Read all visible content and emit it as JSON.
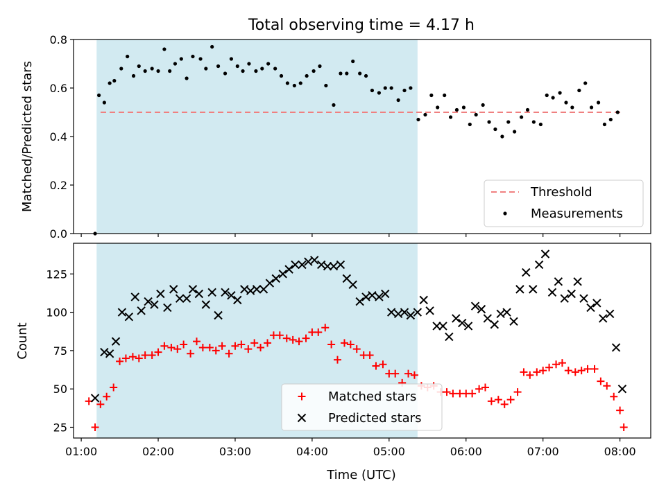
{
  "title": "Total observing time = 4.17 h",
  "xlabel": "Time (UTC)",
  "x_tick_labels": [
    "01:00",
    "02:00",
    "03:00",
    "04:00",
    "05:00",
    "06:00",
    "07:00",
    "08:00"
  ],
  "observing_window": {
    "start_h": 1.2,
    "end_h": 5.37,
    "color": "#add8e6"
  },
  "chart_data": [
    {
      "type": "scatter",
      "ylabel": "Matched/Predicted stars",
      "xlim": [
        0.9,
        8.4
      ],
      "ylim": [
        0,
        0.8
      ],
      "y_ticks": [
        "0.0",
        "0.2",
        "0.4",
        "0.6",
        "0.8"
      ],
      "threshold": {
        "name": "Threshold",
        "value": 0.5,
        "color": "#f08080"
      },
      "series": [
        {
          "name": "Measurements",
          "color": "#000000",
          "marker": "dot",
          "points": [
            [
              1.18,
              0.0
            ],
            [
              1.23,
              0.57
            ],
            [
              1.3,
              0.54
            ],
            [
              1.37,
              0.62
            ],
            [
              1.43,
              0.63
            ],
            [
              1.52,
              0.68
            ],
            [
              1.6,
              0.73
            ],
            [
              1.68,
              0.65
            ],
            [
              1.75,
              0.69
            ],
            [
              1.83,
              0.67
            ],
            [
              1.92,
              0.68
            ],
            [
              2.0,
              0.67
            ],
            [
              2.08,
              0.76
            ],
            [
              2.15,
              0.67
            ],
            [
              2.22,
              0.7
            ],
            [
              2.3,
              0.72
            ],
            [
              2.37,
              0.64
            ],
            [
              2.45,
              0.73
            ],
            [
              2.55,
              0.72
            ],
            [
              2.62,
              0.68
            ],
            [
              2.7,
              0.77
            ],
            [
              2.78,
              0.69
            ],
            [
              2.87,
              0.66
            ],
            [
              2.95,
              0.72
            ],
            [
              3.03,
              0.69
            ],
            [
              3.1,
              0.67
            ],
            [
              3.18,
              0.7
            ],
            [
              3.27,
              0.67
            ],
            [
              3.35,
              0.68
            ],
            [
              3.43,
              0.7
            ],
            [
              3.52,
              0.68
            ],
            [
              3.6,
              0.65
            ],
            [
              3.68,
              0.62
            ],
            [
              3.77,
              0.61
            ],
            [
              3.85,
              0.62
            ],
            [
              3.93,
              0.65
            ],
            [
              4.02,
              0.67
            ],
            [
              4.1,
              0.69
            ],
            [
              4.18,
              0.61
            ],
            [
              4.28,
              0.53
            ],
            [
              4.37,
              0.66
            ],
            [
              4.45,
              0.66
            ],
            [
              4.53,
              0.71
            ],
            [
              4.62,
              0.66
            ],
            [
              4.7,
              0.65
            ],
            [
              4.78,
              0.59
            ],
            [
              4.87,
              0.58
            ],
            [
              4.95,
              0.6
            ],
            [
              5.03,
              0.6
            ],
            [
              5.12,
              0.55
            ],
            [
              5.2,
              0.59
            ],
            [
              5.28,
              0.6
            ],
            [
              5.38,
              0.47
            ],
            [
              5.47,
              0.49
            ],
            [
              5.55,
              0.57
            ],
            [
              5.63,
              0.52
            ],
            [
              5.72,
              0.57
            ],
            [
              5.8,
              0.48
            ],
            [
              5.88,
              0.51
            ],
            [
              5.97,
              0.52
            ],
            [
              6.05,
              0.45
            ],
            [
              6.13,
              0.49
            ],
            [
              6.22,
              0.53
            ],
            [
              6.3,
              0.46
            ],
            [
              6.38,
              0.43
            ],
            [
              6.47,
              0.4
            ],
            [
              6.55,
              0.46
            ],
            [
              6.63,
              0.42
            ],
            [
              6.72,
              0.48
            ],
            [
              6.8,
              0.51
            ],
            [
              6.88,
              0.46
            ],
            [
              6.97,
              0.45
            ],
            [
              7.05,
              0.57
            ],
            [
              7.13,
              0.56
            ],
            [
              7.22,
              0.58
            ],
            [
              7.3,
              0.54
            ],
            [
              7.38,
              0.52
            ],
            [
              7.47,
              0.59
            ],
            [
              7.55,
              0.62
            ],
            [
              7.63,
              0.52
            ],
            [
              7.72,
              0.54
            ],
            [
              7.8,
              0.45
            ],
            [
              7.88,
              0.47
            ],
            [
              7.97,
              0.5
            ]
          ]
        }
      ],
      "legend": {
        "position": "lower right",
        "entries": [
          "Threshold",
          "Measurements"
        ]
      }
    },
    {
      "type": "scatter",
      "ylabel": "Count",
      "xlim": [
        0.9,
        8.4
      ],
      "ylim": [
        18,
        145
      ],
      "y_ticks": [
        "25",
        "50",
        "75",
        "100",
        "125"
      ],
      "series": [
        {
          "name": "Matched stars",
          "color": "#ff0000",
          "marker": "plus",
          "points": [
            [
              1.1,
              42
            ],
            [
              1.18,
              25
            ],
            [
              1.25,
              40
            ],
            [
              1.33,
              45
            ],
            [
              1.42,
              51
            ],
            [
              1.5,
              68
            ],
            [
              1.58,
              70
            ],
            [
              1.67,
              71
            ],
            [
              1.75,
              70
            ],
            [
              1.83,
              72
            ],
            [
              1.92,
              72
            ],
            [
              2.0,
              74
            ],
            [
              2.08,
              78
            ],
            [
              2.17,
              77
            ],
            [
              2.25,
              76
            ],
            [
              2.33,
              79
            ],
            [
              2.42,
              73
            ],
            [
              2.5,
              81
            ],
            [
              2.58,
              77
            ],
            [
              2.67,
              77
            ],
            [
              2.75,
              75
            ],
            [
              2.83,
              78
            ],
            [
              2.92,
              73
            ],
            [
              3.0,
              78
            ],
            [
              3.08,
              79
            ],
            [
              3.17,
              76
            ],
            [
              3.25,
              80
            ],
            [
              3.33,
              77
            ],
            [
              3.42,
              80
            ],
            [
              3.5,
              85
            ],
            [
              3.58,
              85
            ],
            [
              3.67,
              83
            ],
            [
              3.75,
              82
            ],
            [
              3.83,
              81
            ],
            [
              3.92,
              83
            ],
            [
              4.0,
              87
            ],
            [
              4.08,
              87
            ],
            [
              4.17,
              90
            ],
            [
              4.25,
              79
            ],
            [
              4.33,
              69
            ],
            [
              4.42,
              80
            ],
            [
              4.5,
              79
            ],
            [
              4.58,
              76
            ],
            [
              4.67,
              72
            ],
            [
              4.75,
              72
            ],
            [
              4.83,
              65
            ],
            [
              4.92,
              66
            ],
            [
              5.0,
              60
            ],
            [
              5.08,
              60
            ],
            [
              5.17,
              54
            ],
            [
              5.25,
              60
            ],
            [
              5.33,
              59
            ],
            [
              5.42,
              52
            ],
            [
              5.5,
              51
            ],
            [
              5.58,
              52
            ],
            [
              5.67,
              48
            ],
            [
              5.75,
              48
            ],
            [
              5.83,
              47
            ],
            [
              5.92,
              47
            ],
            [
              6.0,
              47
            ],
            [
              6.08,
              47
            ],
            [
              6.17,
              50
            ],
            [
              6.25,
              51
            ],
            [
              6.33,
              42
            ],
            [
              6.42,
              43
            ],
            [
              6.5,
              40
            ],
            [
              6.58,
              43
            ],
            [
              6.67,
              48
            ],
            [
              6.75,
              61
            ],
            [
              6.83,
              59
            ],
            [
              6.92,
              61
            ],
            [
              7.0,
              62
            ],
            [
              7.08,
              64
            ],
            [
              7.17,
              66
            ],
            [
              7.25,
              67
            ],
            [
              7.33,
              62
            ],
            [
              7.42,
              61
            ],
            [
              7.5,
              62
            ],
            [
              7.58,
              63
            ],
            [
              7.67,
              63
            ],
            [
              7.75,
              55
            ],
            [
              7.83,
              52
            ],
            [
              7.92,
              45
            ],
            [
              8.0,
              36
            ],
            [
              8.05,
              25
            ]
          ]
        },
        {
          "name": "Predicted stars",
          "color": "#000000",
          "marker": "cross",
          "points": [
            [
              1.18,
              44
            ],
            [
              1.3,
              74
            ],
            [
              1.37,
              73
            ],
            [
              1.45,
              81
            ],
            [
              1.53,
              100
            ],
            [
              1.62,
              97
            ],
            [
              1.7,
              110
            ],
            [
              1.78,
              101
            ],
            [
              1.87,
              107
            ],
            [
              1.95,
              105
            ],
            [
              2.03,
              112
            ],
            [
              2.12,
              103
            ],
            [
              2.2,
              115
            ],
            [
              2.28,
              109
            ],
            [
              2.37,
              109
            ],
            [
              2.45,
              115
            ],
            [
              2.53,
              112
            ],
            [
              2.62,
              105
            ],
            [
              2.7,
              113
            ],
            [
              2.78,
              98
            ],
            [
              2.87,
              113
            ],
            [
              2.95,
              111
            ],
            [
              3.03,
              108
            ],
            [
              3.12,
              115
            ],
            [
              3.2,
              114
            ],
            [
              3.28,
              115
            ],
            [
              3.37,
              115
            ],
            [
              3.45,
              119
            ],
            [
              3.53,
              122
            ],
            [
              3.62,
              125
            ],
            [
              3.7,
              128
            ],
            [
              3.78,
              131
            ],
            [
              3.87,
              131
            ],
            [
              3.95,
              133
            ],
            [
              4.03,
              134
            ],
            [
              4.12,
              131
            ],
            [
              4.2,
              130
            ],
            [
              4.28,
              130
            ],
            [
              4.37,
              131
            ],
            [
              4.45,
              122
            ],
            [
              4.53,
              118
            ],
            [
              4.62,
              107
            ],
            [
              4.7,
              110
            ],
            [
              4.78,
              111
            ],
            [
              4.87,
              110
            ],
            [
              4.95,
              112
            ],
            [
              5.03,
              100
            ],
            [
              5.12,
              99
            ],
            [
              5.2,
              100
            ],
            [
              5.28,
              98
            ],
            [
              5.37,
              100
            ],
            [
              5.45,
              108
            ],
            [
              5.53,
              101
            ],
            [
              5.62,
              91
            ],
            [
              5.7,
              91
            ],
            [
              5.78,
              84
            ],
            [
              5.87,
              96
            ],
            [
              5.95,
              93
            ],
            [
              6.03,
              91
            ],
            [
              6.12,
              104
            ],
            [
              6.2,
              102
            ],
            [
              6.28,
              96
            ],
            [
              6.37,
              92
            ],
            [
              6.45,
              99
            ],
            [
              6.53,
              100
            ],
            [
              6.62,
              94
            ],
            [
              6.7,
              115
            ],
            [
              6.78,
              126
            ],
            [
              6.87,
              115
            ],
            [
              6.95,
              131
            ],
            [
              7.03,
              138
            ],
            [
              7.12,
              113
            ],
            [
              7.2,
              120
            ],
            [
              7.28,
              109
            ],
            [
              7.37,
              112
            ],
            [
              7.45,
              120
            ],
            [
              7.53,
              109
            ],
            [
              7.62,
              103
            ],
            [
              7.7,
              106
            ],
            [
              7.78,
              96
            ],
            [
              7.87,
              99
            ],
            [
              7.95,
              77
            ],
            [
              8.03,
              50
            ]
          ]
        }
      ],
      "legend": {
        "position": "lower center",
        "entries": [
          "Matched stars",
          "Predicted stars"
        ]
      }
    }
  ]
}
